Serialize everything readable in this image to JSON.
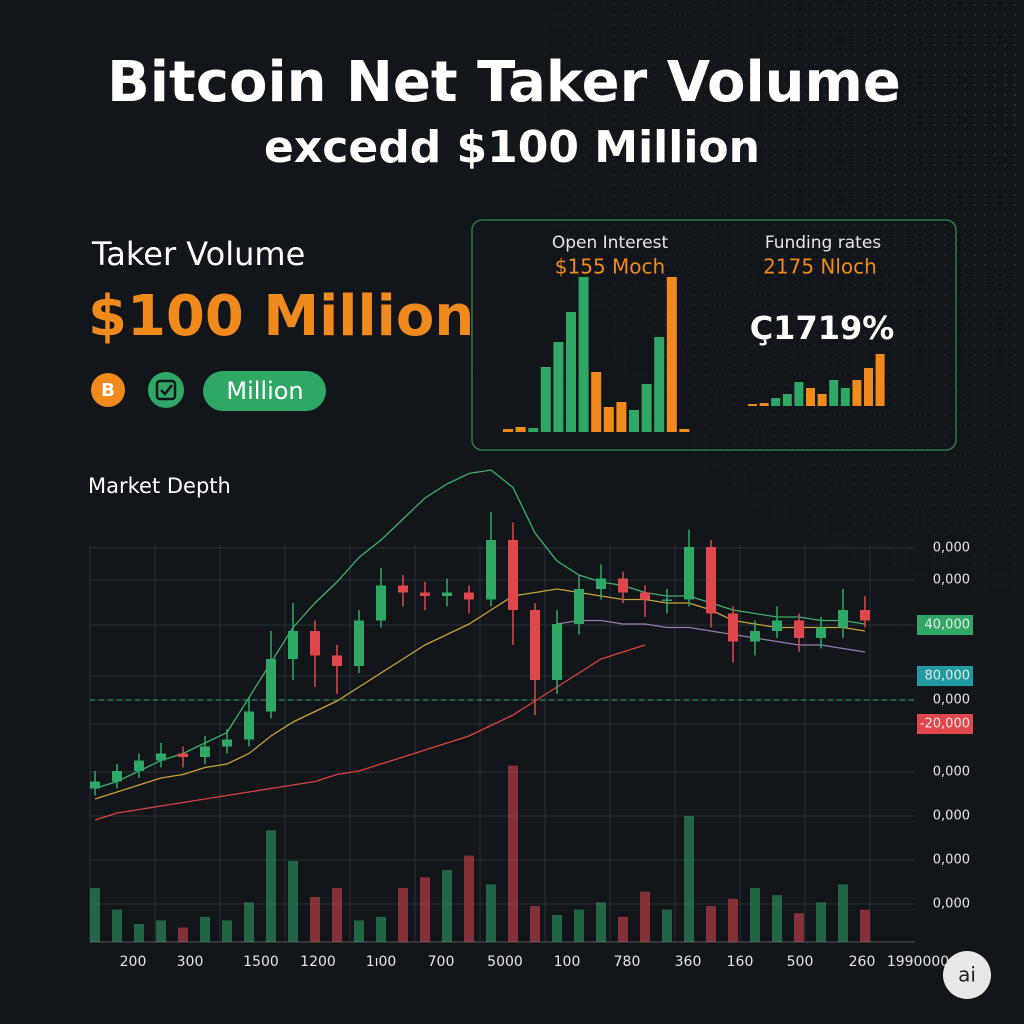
{
  "header": {
    "title_line1": "Bitcoin Net Taker Volume",
    "title_line2": "excedd $100 Million"
  },
  "summary": {
    "label": "Taker Volume",
    "value": "$100 Million",
    "coin_icon": "B",
    "badge": "Million"
  },
  "open_interest": {
    "label": "Open Interest",
    "value": "$155 Moch",
    "bars": [
      3,
      5,
      4,
      65,
      90,
      120,
      155,
      60,
      25,
      30,
      22,
      48,
      95,
      155,
      3
    ],
    "colors": [
      "#f08a1c",
      "#f08a1c",
      "#2fa866",
      "#2fa866",
      "#2fa866",
      "#2fa866",
      "#2fa866",
      "#f08a1c",
      "#f08a1c",
      "#f08a1c",
      "#2fa866",
      "#2fa866",
      "#2fa866",
      "#f08a1c",
      "#f08a1c"
    ]
  },
  "funding": {
    "label": "Funding rates",
    "value": "2175 Nloch",
    "rate": "Ç1719%",
    "bars": [
      2,
      3,
      8,
      12,
      24,
      18,
      12,
      26,
      18,
      26,
      38,
      52
    ],
    "colors": [
      "#f08a1c",
      "#f08a1c",
      "#2fa866",
      "#2fa866",
      "#2fa866",
      "#f08a1c",
      "#f08a1c",
      "#2fa866",
      "#2fa866",
      "#f08a1c",
      "#f08a1c",
      "#f08a1c"
    ]
  },
  "market_depth": {
    "type": "candlestick",
    "title": "Market Depth",
    "up_color": "#2fa866",
    "down_color": "#e0474c",
    "ylim": [
      0,
      100
    ],
    "volume_lim": [
      0,
      100
    ],
    "candles": [
      {
        "open": 9,
        "high": 14,
        "low": 7,
        "close": 11
      },
      {
        "open": 11,
        "high": 16,
        "low": 9,
        "close": 14
      },
      {
        "open": 14,
        "high": 19,
        "low": 12,
        "close": 17
      },
      {
        "open": 17,
        "high": 22,
        "low": 15,
        "close": 19
      },
      {
        "open": 19,
        "high": 21,
        "low": 15,
        "close": 18
      },
      {
        "open": 18,
        "high": 24,
        "low": 16,
        "close": 21
      },
      {
        "open": 21,
        "high": 26,
        "low": 19,
        "close": 23
      },
      {
        "open": 23,
        "high": 35,
        "low": 21,
        "close": 31
      },
      {
        "open": 31,
        "high": 54,
        "low": 29,
        "close": 46
      },
      {
        "open": 46,
        "high": 62,
        "low": 40,
        "close": 54
      },
      {
        "open": 54,
        "high": 57,
        "low": 38,
        "close": 47
      },
      {
        "open": 47,
        "high": 50,
        "low": 36,
        "close": 44
      },
      {
        "open": 44,
        "high": 60,
        "low": 42,
        "close": 57
      },
      {
        "open": 57,
        "high": 72,
        "low": 55,
        "close": 67
      },
      {
        "open": 67,
        "high": 70,
        "low": 61,
        "close": 65
      },
      {
        "open": 65,
        "high": 68,
        "low": 60,
        "close": 64
      },
      {
        "open": 64,
        "high": 69,
        "low": 61,
        "close": 65
      },
      {
        "open": 65,
        "high": 67,
        "low": 59,
        "close": 63
      },
      {
        "open": 63,
        "high": 88,
        "low": 61,
        "close": 80
      },
      {
        "open": 80,
        "high": 85,
        "low": 50,
        "close": 60
      },
      {
        "open": 60,
        "high": 62,
        "low": 30,
        "close": 40
      },
      {
        "open": 40,
        "high": 60,
        "low": 36,
        "close": 56
      },
      {
        "open": 56,
        "high": 70,
        "low": 53,
        "close": 66
      },
      {
        "open": 66,
        "high": 73,
        "low": 63,
        "close": 69
      },
      {
        "open": 69,
        "high": 71,
        "low": 62,
        "close": 65
      },
      {
        "open": 65,
        "high": 67,
        "low": 58,
        "close": 63
      },
      {
        "open": 63,
        "high": 66,
        "low": 59,
        "close": 63
      },
      {
        "open": 63,
        "high": 83,
        "low": 61,
        "close": 78
      },
      {
        "open": 78,
        "high": 80,
        "low": 55,
        "close": 59
      },
      {
        "open": 59,
        "high": 61,
        "low": 45,
        "close": 51
      },
      {
        "open": 51,
        "high": 57,
        "low": 47,
        "close": 54
      },
      {
        "open": 54,
        "high": 61,
        "low": 52,
        "close": 57
      },
      {
        "open": 57,
        "high": 59,
        "low": 48,
        "close": 52
      },
      {
        "open": 52,
        "high": 58,
        "low": 49,
        "close": 55
      },
      {
        "open": 55,
        "high": 66,
        "low": 52,
        "close": 60
      },
      {
        "open": 60,
        "high": 64,
        "low": 55,
        "close": 57
      }
    ],
    "volumes": [
      30,
      18,
      10,
      12,
      8,
      14,
      12,
      22,
      62,
      45,
      25,
      30,
      12,
      14,
      30,
      36,
      40,
      48,
      32,
      98,
      20,
      15,
      18,
      22,
      14,
      28,
      18,
      70,
      20,
      24,
      30,
      26,
      16,
      22,
      32,
      18
    ],
    "lines": [
      {
        "color": "#3fae6e",
        "values": [
          9,
          11,
          14,
          17,
          19,
          22,
          25,
          35,
          45,
          55,
          62,
          68,
          75,
          80,
          86,
          92,
          96,
          99,
          100,
          95,
          82,
          74,
          70,
          68,
          67,
          65,
          64,
          64,
          62,
          60,
          59,
          58,
          58,
          57,
          57,
          56
        ]
      },
      {
        "color": "#c9a23a",
        "values": [
          6,
          8,
          10,
          12,
          13,
          15,
          16,
          19,
          24,
          28,
          31,
          34,
          38,
          42,
          46,
          50,
          53,
          56,
          60,
          64,
          65,
          66,
          65,
          64,
          63,
          63,
          62,
          62,
          60,
          57,
          56,
          55,
          55,
          55,
          55,
          54
        ]
      },
      {
        "color": "#d9433f",
        "values": [
          0,
          2,
          3,
          4,
          5,
          6,
          7,
          8,
          9,
          10,
          11,
          13,
          14,
          16,
          18,
          20,
          22,
          24,
          27,
          30,
          34,
          38,
          42,
          46,
          48,
          50,
          null,
          null,
          null,
          null,
          null,
          null,
          null,
          null,
          null,
          null
        ]
      },
      {
        "color": "#9a7bb0",
        "values": [
          null,
          null,
          null,
          null,
          null,
          null,
          null,
          null,
          null,
          null,
          null,
          null,
          null,
          null,
          null,
          null,
          null,
          null,
          null,
          null,
          null,
          56,
          57,
          57,
          56,
          56,
          55,
          55,
          54,
          53,
          52,
          51,
          50,
          50,
          49,
          48
        ]
      }
    ],
    "y_labels": [
      {
        "label": "0,000"
      },
      {
        "label": "0,000"
      },
      {
        "label": "40,000",
        "color": "#2fa866"
      },
      {
        "label": "80,000",
        "color": "#1f9aa0"
      },
      {
        "label": "0,000"
      },
      {
        "label": "-20,000",
        "color": "#e0474c"
      },
      {
        "label": "0,000"
      },
      {
        "label": "0,000"
      },
      {
        "label": "0,000"
      },
      {
        "label": "0,000"
      }
    ],
    "x_labels": [
      "200",
      "300",
      "1500",
      "1200",
      "1ı00",
      "700",
      "5000",
      "100",
      "780",
      "360",
      "160",
      "500",
      "260",
      "1990000"
    ]
  },
  "badge": "ai"
}
